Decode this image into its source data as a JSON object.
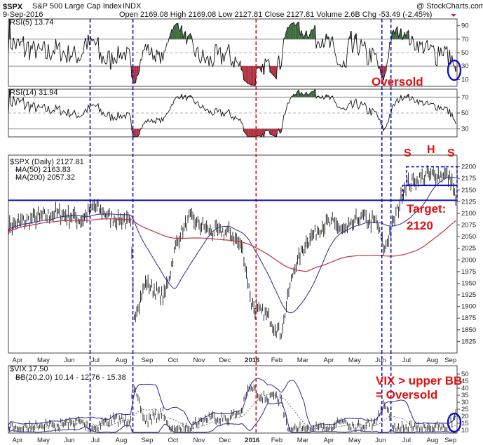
{
  "header": {
    "symbol": "$SPX",
    "name": "S&P 500 Large Cap Index",
    "exchange": "INDX",
    "date": "9-Sep-2016",
    "ohlc_line": "Open 2169.08  High 2169.08  Low 2127.81  Close 2127.81  Volume 2.6B  Chg -53.49 (-2.45%)",
    "watermark": "@ StockCharts.com"
  },
  "chart_data": [
    {
      "type": "line",
      "panel": "rsi5",
      "title": "RSI(5) 13.74",
      "ylim": [
        0,
        100
      ],
      "yticks": [
        10,
        30,
        50,
        70,
        90
      ],
      "reference_lines": [
        30,
        70
      ]
    },
    {
      "type": "line",
      "panel": "rsi14",
      "title": "RSI(14) 31.94",
      "ylim": [
        20,
        80
      ],
      "yticks": [
        30,
        50,
        70
      ],
      "reference_lines": [
        30,
        70
      ]
    },
    {
      "type": "bar",
      "panel": "price",
      "title": "$SPX (Daily) 2127.81",
      "legend": [
        "MA(50) 2163.83",
        "MA(200) 2057.32"
      ],
      "ylim": [
        1800,
        2225
      ],
      "yticks": [
        1825,
        1850,
        1875,
        1900,
        1925,
        1950,
        1975,
        2000,
        2025,
        2050,
        2075,
        2100,
        2125,
        2150,
        2175,
        2200
      ],
      "horizontal_line": 2128,
      "neckline": 2160,
      "x_months": [
        "Apr",
        "May",
        "Jun",
        "Jul",
        "Aug",
        "Sep",
        "Oct",
        "Nov",
        "Dec",
        "2016",
        "Feb",
        "Mar",
        "Apr",
        "May",
        "Jun",
        "Jul",
        "Aug",
        "Sep"
      ],
      "keypoints": [
        {
          "m": 0.0,
          "v": 2070
        },
        {
          "m": 1.0,
          "v": 2090
        },
        {
          "m": 2.0,
          "v": 2100
        },
        {
          "m": 2.8,
          "v": 2085
        },
        {
          "m": 3.3,
          "v": 2115
        },
        {
          "m": 4.0,
          "v": 2090
        },
        {
          "m": 4.7,
          "v": 2080
        },
        {
          "m": 4.85,
          "v": 1880
        },
        {
          "m": 5.3,
          "v": 1950
        },
        {
          "m": 6.0,
          "v": 1920
        },
        {
          "m": 6.5,
          "v": 2040
        },
        {
          "m": 7.0,
          "v": 2090
        },
        {
          "m": 7.8,
          "v": 2060
        },
        {
          "m": 8.5,
          "v": 2060
        },
        {
          "m": 9.0,
          "v": 2030
        },
        {
          "m": 9.4,
          "v": 1900
        },
        {
          "m": 10.0,
          "v": 1880
        },
        {
          "m": 10.5,
          "v": 1840
        },
        {
          "m": 11.0,
          "v": 1980
        },
        {
          "m": 11.5,
          "v": 2040
        },
        {
          "m": 12.0,
          "v": 2070
        },
        {
          "m": 12.5,
          "v": 2080
        },
        {
          "m": 13.0,
          "v": 2060
        },
        {
          "m": 13.5,
          "v": 2090
        },
        {
          "m": 14.2,
          "v": 2080
        },
        {
          "m": 14.5,
          "v": 2020
        },
        {
          "m": 14.9,
          "v": 2090
        },
        {
          "m": 15.3,
          "v": 2160
        },
        {
          "m": 16.0,
          "v": 2180
        },
        {
          "m": 16.8,
          "v": 2185
        },
        {
          "m": 17.1,
          "v": 2170
        },
        {
          "m": 17.25,
          "v": 2128
        }
      ]
    },
    {
      "type": "line",
      "panel": "vix",
      "title": "$VIX 17.50",
      "legend": [
        "BB(20,2.0) 10.14 - 12.76 - 15.38"
      ],
      "ylim": [
        8,
        56
      ],
      "yticks": [
        10,
        15,
        20,
        25,
        30,
        35,
        40,
        45,
        50
      ],
      "x_months": [
        "Apr",
        "May",
        "Jun",
        "Jul",
        "Aug",
        "Sep",
        "Oct",
        "Nov",
        "Dec",
        "2016",
        "Feb",
        "Mar",
        "Apr",
        "May",
        "Jun",
        "Jul",
        "Aug",
        "Sep"
      ]
    }
  ],
  "vertical_markers": {
    "blue_dashed_months": [
      3.15,
      4.8,
      14.4,
      14.75
    ],
    "red_dashed_months": [
      9.55
    ]
  },
  "annotations": {
    "oversold1": "Oversold",
    "s_left": "S",
    "h": "H",
    "s_right": "S",
    "target1": "Target:",
    "target2": "2120",
    "vix1": "VIX > upper BB",
    "vix2": "= Oversold"
  },
  "colors": {
    "red_annot": "#e01010",
    "blue_line": "#1010c0",
    "ma50": "#2a2a90",
    "ma200": "#c03040",
    "rsi_fill_high": "#3a6a3a",
    "rsi_fill_low": "#b03040"
  }
}
